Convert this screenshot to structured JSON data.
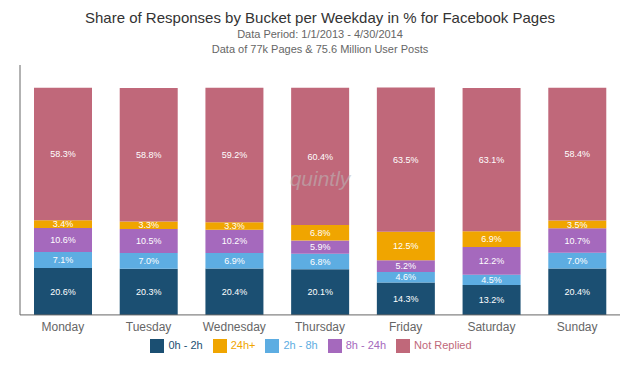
{
  "chart_data": {
    "type": "bar",
    "stacked": true,
    "data_labels": true,
    "legend": "bottom",
    "tick_labels": "x",
    "title": "Share of Responses by Bucket per Weekday in % for Facebook Pages",
    "subtitle": [
      "Data Period: 1/1/2013 - 4/30/2014",
      "Data of 77k Pages & 75.6 Million User Posts"
    ],
    "annotations": [
      "quintly"
    ],
    "categories": [
      "Monday",
      "Tuesday",
      "Wednesday",
      "Thursday",
      "Friday",
      "Saturday",
      "Sunday"
    ],
    "ylim": [
      0,
      110
    ],
    "series": [
      {
        "name": "0h - 2h",
        "color": "#1b4f72",
        "values": [
          20.6,
          20.3,
          20.4,
          20.1,
          14.3,
          13.2,
          20.4
        ],
        "value_labels": [
          "20.6%",
          "20.3%",
          "20.4%",
          "20.1%",
          "14.3%",
          "13.2%",
          "20.4%"
        ]
      },
      {
        "name": "2h - 8h",
        "color": "#5dade2",
        "values": [
          7.1,
          7.0,
          6.9,
          6.8,
          4.6,
          4.5,
          7.0
        ],
        "value_labels": [
          "7.1%",
          "7.0%",
          "6.9%",
          "6.8%",
          "4.6%",
          "4.5%",
          "7.0%"
        ]
      },
      {
        "name": "8h - 24h",
        "color": "#a569bd",
        "values": [
          10.6,
          10.5,
          10.2,
          5.9,
          5.2,
          12.2,
          10.7
        ],
        "value_labels": [
          "10.6%",
          "10.5%",
          "10.2%",
          "5.9%",
          "5.2%",
          "12.2%",
          "10.7%"
        ]
      },
      {
        "name": "24h+",
        "color": "#f0a500",
        "values": [
          3.4,
          3.3,
          3.3,
          6.8,
          12.5,
          6.9,
          3.5
        ],
        "value_labels": [
          "3.4%",
          "3.3%",
          "3.3%",
          "6.8%",
          "12.5%",
          "6.9%",
          "3.5%"
        ]
      },
      {
        "name": "Not Replied",
        "color": "#c0687a",
        "values": [
          58.3,
          58.8,
          59.2,
          60.4,
          63.5,
          63.1,
          58.4
        ],
        "value_labels": [
          "58.3%",
          "58.8%",
          "59.2%",
          "60.4%",
          "63.5%",
          "63.1%",
          "58.4%"
        ]
      }
    ]
  }
}
